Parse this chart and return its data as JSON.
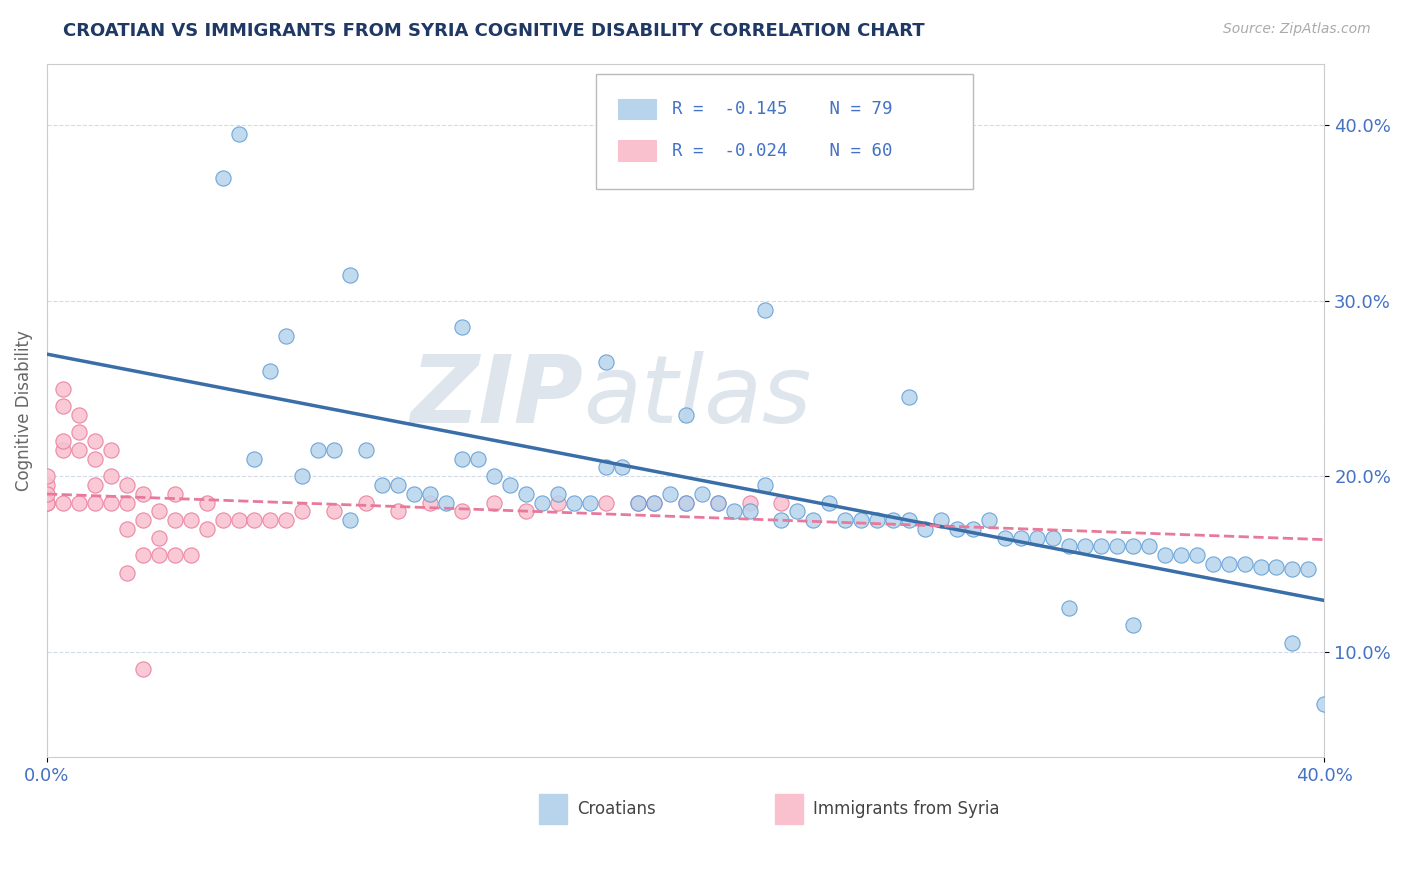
{
  "title": "CROATIAN VS IMMIGRANTS FROM SYRIA COGNITIVE DISABILITY CORRELATION CHART",
  "source": "Source: ZipAtlas.com",
  "ylabel": "Cognitive Disability",
  "yticks": [
    0.1,
    0.2,
    0.3,
    0.4
  ],
  "ytick_labels": [
    "10.0%",
    "20.0%",
    "30.0%",
    "40.0%"
  ],
  "xmin": 0.0,
  "xmax": 0.4,
  "ymin": 0.04,
  "ymax": 0.435,
  "legend_r1": "R =  -0.145",
  "legend_n1": "N = 79",
  "legend_r2": "R =  -0.024",
  "legend_n2": "N = 60",
  "color_croatian_fill": "#b8d4ec",
  "color_croatian_edge": "#5b9bd5",
  "color_syria_fill": "#f9c0ce",
  "color_syria_edge": "#e8799a",
  "color_line_croatian": "#3a6ea8",
  "color_line_syria": "#e8799a",
  "color_title": "#1f3864",
  "color_tick_labels": "#4472c4",
  "watermark_zip": "ZIP",
  "watermark_atlas": "atlas",
  "croatian_x": [
    0.055,
    0.06,
    0.065,
    0.07,
    0.075,
    0.08,
    0.085,
    0.09,
    0.095,
    0.1,
    0.105,
    0.11,
    0.115,
    0.12,
    0.125,
    0.13,
    0.135,
    0.14,
    0.145,
    0.15,
    0.155,
    0.16,
    0.165,
    0.17,
    0.175,
    0.18,
    0.185,
    0.19,
    0.195,
    0.2,
    0.205,
    0.21,
    0.215,
    0.22,
    0.225,
    0.23,
    0.235,
    0.24,
    0.245,
    0.25,
    0.255,
    0.26,
    0.265,
    0.27,
    0.275,
    0.28,
    0.285,
    0.29,
    0.295,
    0.3,
    0.305,
    0.31,
    0.315,
    0.32,
    0.325,
    0.33,
    0.335,
    0.34,
    0.345,
    0.35,
    0.355,
    0.36,
    0.365,
    0.37,
    0.375,
    0.38,
    0.385,
    0.39,
    0.395,
    0.095,
    0.13,
    0.175,
    0.2,
    0.225,
    0.27,
    0.32,
    0.34,
    0.39,
    0.4
  ],
  "croatian_y": [
    0.37,
    0.395,
    0.21,
    0.26,
    0.28,
    0.2,
    0.215,
    0.215,
    0.175,
    0.215,
    0.195,
    0.195,
    0.19,
    0.19,
    0.185,
    0.21,
    0.21,
    0.2,
    0.195,
    0.19,
    0.185,
    0.19,
    0.185,
    0.185,
    0.205,
    0.205,
    0.185,
    0.185,
    0.19,
    0.185,
    0.19,
    0.185,
    0.18,
    0.18,
    0.195,
    0.175,
    0.18,
    0.175,
    0.185,
    0.175,
    0.175,
    0.175,
    0.175,
    0.175,
    0.17,
    0.175,
    0.17,
    0.17,
    0.175,
    0.165,
    0.165,
    0.165,
    0.165,
    0.16,
    0.16,
    0.16,
    0.16,
    0.16,
    0.16,
    0.155,
    0.155,
    0.155,
    0.15,
    0.15,
    0.15,
    0.148,
    0.148,
    0.147,
    0.147,
    0.315,
    0.285,
    0.265,
    0.235,
    0.295,
    0.245,
    0.125,
    0.115,
    0.105,
    0.07
  ],
  "syria_x": [
    0.0,
    0.0,
    0.0,
    0.0,
    0.0,
    0.005,
    0.005,
    0.005,
    0.005,
    0.005,
    0.01,
    0.01,
    0.01,
    0.01,
    0.015,
    0.015,
    0.015,
    0.015,
    0.02,
    0.02,
    0.02,
    0.025,
    0.025,
    0.025,
    0.025,
    0.03,
    0.03,
    0.03,
    0.03,
    0.035,
    0.035,
    0.035,
    0.04,
    0.04,
    0.04,
    0.045,
    0.045,
    0.05,
    0.05,
    0.055,
    0.06,
    0.065,
    0.07,
    0.075,
    0.08,
    0.09,
    0.1,
    0.11,
    0.12,
    0.13,
    0.14,
    0.15,
    0.16,
    0.175,
    0.185,
    0.19,
    0.2,
    0.21,
    0.22,
    0.23
  ],
  "syria_y": [
    0.185,
    0.195,
    0.185,
    0.19,
    0.2,
    0.185,
    0.215,
    0.22,
    0.24,
    0.25,
    0.185,
    0.215,
    0.225,
    0.235,
    0.185,
    0.195,
    0.21,
    0.22,
    0.185,
    0.2,
    0.215,
    0.145,
    0.17,
    0.185,
    0.195,
    0.09,
    0.155,
    0.175,
    0.19,
    0.155,
    0.165,
    0.18,
    0.155,
    0.175,
    0.19,
    0.155,
    0.175,
    0.17,
    0.185,
    0.175,
    0.175,
    0.175,
    0.175,
    0.175,
    0.18,
    0.18,
    0.185,
    0.18,
    0.185,
    0.18,
    0.185,
    0.18,
    0.185,
    0.185,
    0.185,
    0.185,
    0.185,
    0.185,
    0.185,
    0.185
  ]
}
